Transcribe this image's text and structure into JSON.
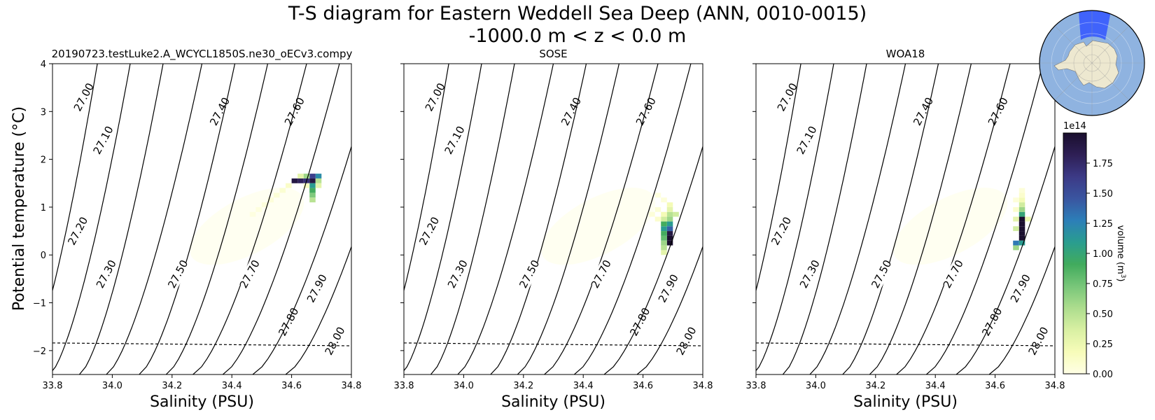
{
  "figure": {
    "title_line1": "T-S diagram for Eastern Weddell Sea Deep (ANN, 0010-0015)",
    "title_line2": "-1000.0 m < z < 0.0 m",
    "ylabel": "Potential temperature (°C)"
  },
  "chart_data": [
    {
      "type": "heatmap",
      "title": "20190723.testLuke2.A_WCYCL1850S.ne30_oECv3.compy",
      "xlabel": "Salinity (PSU)",
      "xlim": [
        33.8,
        34.8
      ],
      "ylim": [
        -2.5,
        4
      ],
      "xticks": [
        "33.8",
        "34.0",
        "34.2",
        "34.4",
        "34.6",
        "34.8"
      ],
      "yticks": [
        "−2",
        "−1",
        "0",
        "1",
        "2",
        "3",
        "4"
      ],
      "density_contours": [
        "27.00",
        "27.10",
        "27.20",
        "27.30",
        "27.40",
        "27.50",
        "27.60",
        "27.70",
        "27.80",
        "27.90",
        "28.00"
      ],
      "freezing_line": [
        [
          33.8,
          -1.84
        ],
        [
          34.8,
          -1.9
        ]
      ],
      "cells": [
        [
          34.61,
          1.55,
          1.9
        ],
        [
          34.63,
          1.55,
          1.8
        ],
        [
          34.65,
          1.55,
          1.7
        ],
        [
          34.67,
          1.55,
          1.9
        ],
        [
          34.69,
          1.65,
          1.2
        ],
        [
          34.67,
          1.65,
          1.6
        ],
        [
          34.65,
          1.65,
          0.6
        ],
        [
          34.63,
          1.65,
          0.3
        ],
        [
          34.67,
          1.45,
          1.1
        ],
        [
          34.67,
          1.35,
          0.9
        ],
        [
          34.67,
          1.25,
          0.7
        ],
        [
          34.67,
          1.15,
          0.5
        ],
        [
          34.69,
          1.55,
          0.5
        ],
        [
          34.69,
          1.45,
          0.3
        ],
        [
          34.65,
          1.45,
          0.15
        ],
        [
          34.59,
          1.45,
          0.12
        ],
        [
          34.57,
          1.35,
          0.08
        ],
        [
          34.55,
          1.25,
          0.06
        ],
        [
          34.53,
          1.15,
          0.05
        ],
        [
          34.51,
          1.05,
          0.04
        ],
        [
          34.49,
          0.95,
          0.03
        ],
        [
          34.47,
          0.85,
          0.02
        ]
      ],
      "cbar_max": 2.0
    },
    {
      "type": "heatmap",
      "title": "SOSE",
      "xlabel": "Salinity (PSU)",
      "xlim": [
        33.8,
        34.8
      ],
      "ylim": [
        -2.5,
        4
      ],
      "xticks": [
        "33.8",
        "34.0",
        "34.2",
        "34.4",
        "34.6",
        "34.8"
      ],
      "density_contours": [
        "27.00",
        "27.10",
        "27.20",
        "27.30",
        "27.40",
        "27.50",
        "27.60",
        "27.70",
        "27.80",
        "27.90",
        "28.00"
      ],
      "freezing_line": [
        [
          33.8,
          -1.84
        ],
        [
          34.8,
          -1.9
        ]
      ],
      "cells": [
        [
          34.69,
          0.25,
          2.0
        ],
        [
          34.69,
          0.35,
          2.0
        ],
        [
          34.69,
          0.45,
          1.9
        ],
        [
          34.69,
          0.55,
          1.4
        ],
        [
          34.67,
          0.55,
          1.1
        ],
        [
          34.67,
          0.45,
          0.9
        ],
        [
          34.67,
          0.35,
          0.8
        ],
        [
          34.67,
          0.25,
          0.6
        ],
        [
          34.67,
          0.15,
          0.5
        ],
        [
          34.67,
          0.05,
          0.3
        ],
        [
          34.69,
          0.65,
          1.1
        ],
        [
          34.67,
          0.65,
          0.9
        ],
        [
          34.69,
          0.75,
          0.6
        ],
        [
          34.71,
          0.85,
          0.4
        ],
        [
          34.69,
          0.85,
          0.5
        ],
        [
          34.67,
          0.75,
          0.4
        ],
        [
          34.69,
          0.95,
          0.3
        ],
        [
          34.69,
          1.05,
          0.2
        ],
        [
          34.67,
          0.85,
          0.2
        ],
        [
          34.65,
          0.75,
          0.1
        ],
        [
          34.65,
          0.95,
          0.06
        ],
        [
          34.63,
          0.85,
          0.05
        ],
        [
          34.67,
          1.15,
          0.05
        ],
        [
          34.65,
          1.25,
          0.03
        ]
      ],
      "cbar_max": 2.0
    },
    {
      "type": "heatmap",
      "title": "WOA18",
      "xlabel": "Salinity (PSU)",
      "xlim": [
        33.8,
        34.8
      ],
      "ylim": [
        -2.5,
        4
      ],
      "xticks": [
        "33.8",
        "34.0",
        "34.2",
        "34.4",
        "34.6",
        "34.8"
      ],
      "density_contours": [
        "27.00",
        "27.10",
        "27.20",
        "27.30",
        "27.40",
        "27.50",
        "27.60",
        "27.70",
        "27.80",
        "27.90",
        "28.00"
      ],
      "freezing_line": [
        [
          33.8,
          -1.84
        ],
        [
          34.8,
          -1.9
        ]
      ],
      "cells": [
        [
          34.69,
          0.35,
          2.0
        ],
        [
          34.69,
          0.45,
          2.0
        ],
        [
          34.69,
          0.55,
          2.0
        ],
        [
          34.69,
          0.65,
          2.0
        ],
        [
          34.69,
          0.75,
          2.0
        ],
        [
          34.67,
          0.25,
          1.3
        ],
        [
          34.69,
          0.25,
          1.1
        ],
        [
          34.67,
          0.15,
          0.6
        ],
        [
          34.69,
          0.85,
          1.0
        ],
        [
          34.69,
          0.95,
          0.6
        ],
        [
          34.69,
          1.05,
          0.4
        ],
        [
          34.69,
          1.15,
          0.2
        ],
        [
          34.67,
          0.55,
          0.4
        ],
        [
          34.67,
          0.75,
          0.3
        ],
        [
          34.71,
          0.75,
          0.25
        ],
        [
          34.67,
          0.95,
          0.1
        ],
        [
          34.69,
          1.25,
          0.1
        ],
        [
          34.69,
          1.35,
          0.05
        ],
        [
          34.67,
          1.15,
          0.05
        ]
      ],
      "cbar_max": 2.0
    }
  ],
  "colorbar": {
    "label": "volume (m",
    "label_sup": "3",
    "label_end": ")",
    "exponent": "1e14",
    "max": 2.0,
    "ticks": [
      "0.00",
      "0.25",
      "0.50",
      "0.75",
      "1.00",
      "1.25",
      "1.50",
      "1.75"
    ],
    "colors": [
      "#ffffe5",
      "#f7fcb9",
      "#d9f0a3",
      "#addd8e",
      "#78c679",
      "#41ab5d",
      "#2a9d8f",
      "#2c7fb8",
      "#3a55a0",
      "#3c3a86",
      "#2e1f55",
      "#1a0f2e"
    ]
  },
  "inset_map": {
    "ocean_color": "#8fb3e0",
    "land_color": "#ede8d0",
    "region_color": "#3355ff"
  }
}
